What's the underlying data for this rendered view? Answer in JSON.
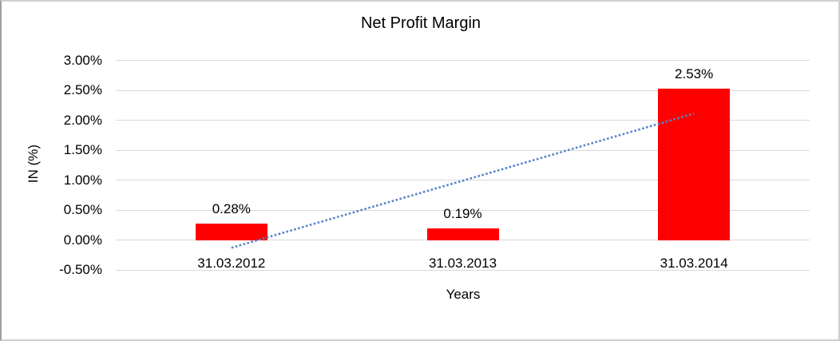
{
  "chart_data": {
    "type": "bar",
    "title": "Net Profit Margin",
    "xlabel": "Years",
    "ylabel": "IN (%)",
    "categories": [
      "31.03.2012",
      "31.03.2013",
      "31.03.2014"
    ],
    "values": [
      0.28,
      0.19,
      2.53
    ],
    "data_labels": [
      "0.28%",
      "0.19%",
      "2.53%"
    ],
    "ytick_labels": [
      "3.00%",
      "2.50%",
      "2.00%",
      "1.50%",
      "1.00%",
      "0.50%",
      "0.00%",
      "-0.50%"
    ],
    "ytick_values": [
      3.0,
      2.5,
      2.0,
      1.5,
      1.0,
      0.5,
      0.0,
      -0.5
    ],
    "ylim": [
      -0.5,
      3.0
    ],
    "grid": true,
    "legend": "none",
    "bar_color": "#FF0000",
    "gridline_color": "#D9D9D9",
    "text_color": "#000000",
    "trendline": {
      "type": "linear",
      "style": "dotted",
      "color": "#5585C8",
      "start_category_index": 0,
      "end_category_index": 2,
      "start_value": -0.13,
      "end_value": 2.11
    }
  }
}
